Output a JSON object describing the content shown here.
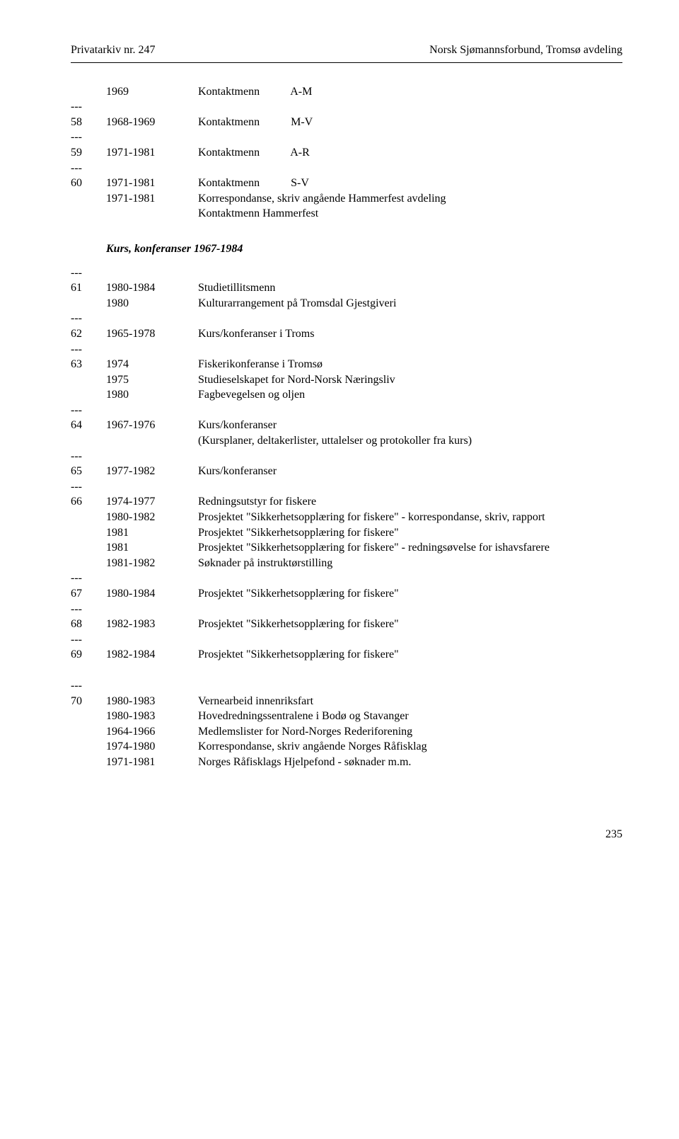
{
  "header": {
    "left": "Privatarkiv nr. 247",
    "right": "Norsk Sjømannsforbund, Tromsø avdeling"
  },
  "sep": "---",
  "block1": [
    {
      "id": "",
      "year": "1969",
      "desc": "Kontaktmenn           A-M"
    },
    {
      "sep": true
    },
    {
      "id": "58",
      "year": "1968-1969",
      "desc": "Kontaktmenn           M-V"
    },
    {
      "sep": true
    },
    {
      "id": "59",
      "year": "1971-1981",
      "desc": "Kontaktmenn           A-R"
    },
    {
      "sep": true
    },
    {
      "id": "60",
      "year": "1971-1981",
      "desc": "Kontaktmenn           S-V"
    },
    {
      "id": "",
      "year": "1971-1981",
      "desc": "Korrespondanse, skriv angående Hammerfest avdeling"
    },
    {
      "id": "",
      "year": "",
      "desc": "Kontaktmenn Hammerfest"
    }
  ],
  "sectionTitle": "Kurs, konferanser 1967-1984",
  "block2": [
    {
      "sep": true
    },
    {
      "id": "61",
      "year": "1980-1984",
      "desc": "Studietillitsmenn"
    },
    {
      "id": "",
      "year": "1980",
      "desc": "Kulturarrangement på Tromsdal Gjestgiveri"
    },
    {
      "sep": true
    },
    {
      "id": "62",
      "year": "1965-1978",
      "desc": "Kurs/konferanser i Troms"
    },
    {
      "sep": true
    },
    {
      "id": "63",
      "year": "1974",
      "desc": "Fiskerikonferanse i Tromsø"
    },
    {
      "id": "",
      "year": "1975",
      "desc": "Studieselskapet for Nord-Norsk Næringsliv"
    },
    {
      "id": "",
      "year": "1980",
      "desc": "Fagbevegelsen og oljen"
    },
    {
      "sep": true
    },
    {
      "id": "64",
      "year": "1967-1976",
      "desc": "Kurs/konferanser"
    },
    {
      "id": "",
      "year": "",
      "desc": "(Kursplaner, deltakerlister, uttalelser og protokoller fra kurs)"
    },
    {
      "sep": true
    },
    {
      "id": "65",
      "year": "1977-1982",
      "desc": "Kurs/konferanser"
    },
    {
      "sep": true
    },
    {
      "id": "66",
      "year": "1974-1977",
      "desc": "Redningsutstyr for fiskere"
    },
    {
      "id": "",
      "year": "1980-1982",
      "desc": "Prosjektet \"Sikkerhetsopplæring for fiskere\" - korrespondanse, skriv, rapport"
    },
    {
      "id": "",
      "year": "1981",
      "desc": "Prosjektet \"Sikkerhetsopplæring for fiskere\""
    },
    {
      "id": "",
      "year": "1981",
      "desc": "Prosjektet \"Sikkerhetsopplæring for fiskere\" - redningsøvelse for ishavsfarere"
    },
    {
      "id": "",
      "year": "1981-1982",
      "desc": "Søknader på instruktørstilling"
    },
    {
      "sep": true
    },
    {
      "id": "67",
      "year": "1980-1984",
      "desc": "Prosjektet \"Sikkerhetsopplæring for fiskere\""
    },
    {
      "sep": true
    },
    {
      "id": "68",
      "year": "1982-1983",
      "desc": "Prosjektet \"Sikkerhetsopplæring for fiskere\""
    },
    {
      "sep": true
    },
    {
      "id": "69",
      "year": "1982-1984",
      "desc": "Prosjektet \"Sikkerhetsopplæring for fiskere\""
    }
  ],
  "block3": [
    {
      "sep": true
    },
    {
      "id": "70",
      "year": "1980-1983",
      "desc": "Vernearbeid innenriksfart"
    },
    {
      "id": "",
      "year": "1980-1983",
      "desc": "Hovedredningssentralene i Bodø og Stavanger"
    },
    {
      "id": "",
      "year": "1964-1966",
      "desc": "Medlemslister for Nord-Norges Rederiforening"
    },
    {
      "id": "",
      "year": "1974-1980",
      "desc": "Korrespondanse, skriv angående Norges Råfisklag"
    },
    {
      "id": "",
      "year": "1971-1981",
      "desc": "Norges Råfisklags Hjelpefond - søknader m.m."
    }
  ],
  "pageNumber": "235",
  "style": {
    "fontFamily": "Times New Roman",
    "fontSizePt": 12,
    "background": "#ffffff",
    "textColor": "#000000",
    "ruleColor": "#000000"
  }
}
